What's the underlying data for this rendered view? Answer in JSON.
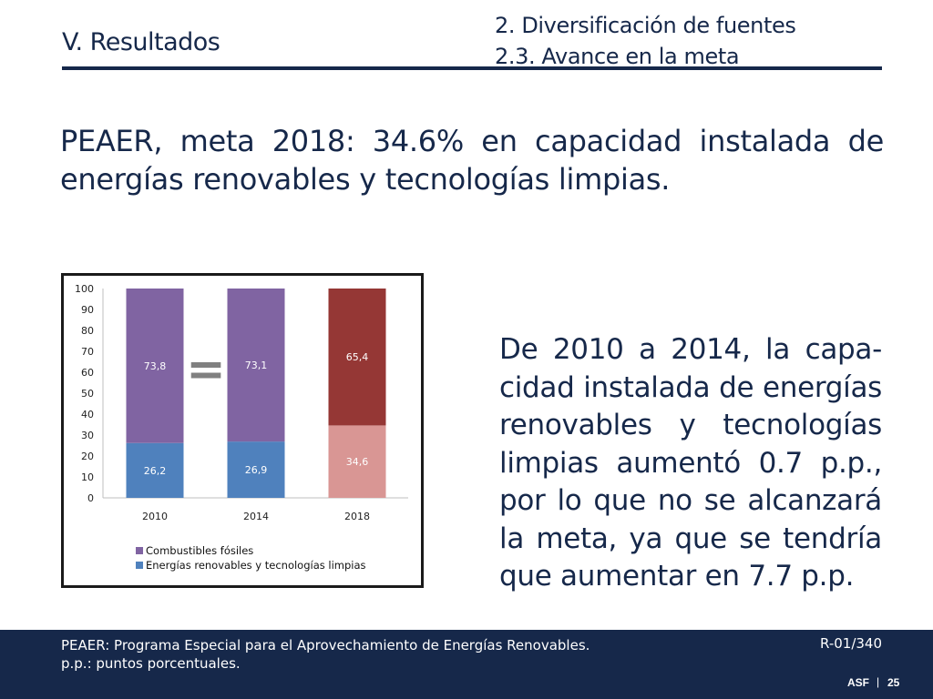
{
  "header": {
    "section": "V. Resultados",
    "subsection_line1": "2. Diversificación de fuentes",
    "subsection_line2": "2.3. Avance en la meta"
  },
  "headline": "PEAER, meta 2018: 34.6% en capacidad instalada de energías renovables y tecnologías limpias.",
  "chart_symbol": "=",
  "chart_data": {
    "type": "bar",
    "stacked": true,
    "categories": [
      "2010",
      "2014",
      "2018"
    ],
    "series": [
      {
        "name": "Energías renovables y tecnologías limpias",
        "values": [
          26.2,
          26.9,
          34.6
        ],
        "labels": [
          "26,2",
          "26,9",
          "34,6"
        ]
      },
      {
        "name": "Combustibles fósiles",
        "values": [
          73.8,
          73.1,
          65.4
        ],
        "labels": [
          "73,8",
          "73,1",
          "65,4"
        ]
      }
    ],
    "bar_colors": {
      "renewables": [
        "#4f81bd",
        "#4f81bd",
        "#d99694"
      ],
      "fossil": [
        "#8064a2",
        "#8064a2",
        "#953735"
      ]
    },
    "legend_colors": {
      "fossil": "#8064a2",
      "renewables": "#4f81bd"
    },
    "ylim": [
      0,
      100
    ],
    "yticks": [
      "0",
      "10",
      "20",
      "30",
      "40",
      "50",
      "60",
      "70",
      "80",
      "90",
      "100"
    ],
    "grid": false,
    "legend_position": "bottom-left"
  },
  "body_text": "De 2010 a 2014, la capa-cidad instalada de energías renovables y tecnologías limpias aumentó 0.7 p.p., por lo que no se alcanzará la meta, ya que se tendría que aumentar en 7.7 p.p.",
  "footer": {
    "note1": "PEAER: Programa Especial para el Aprovechamiento de Energías Renovables.",
    "note2": "p.p.: puntos porcentuales.",
    "ref_code": "R-01/340",
    "brand": "ASF",
    "separator": "|",
    "page": "25"
  },
  "colors": {
    "navy": "#16284a"
  }
}
